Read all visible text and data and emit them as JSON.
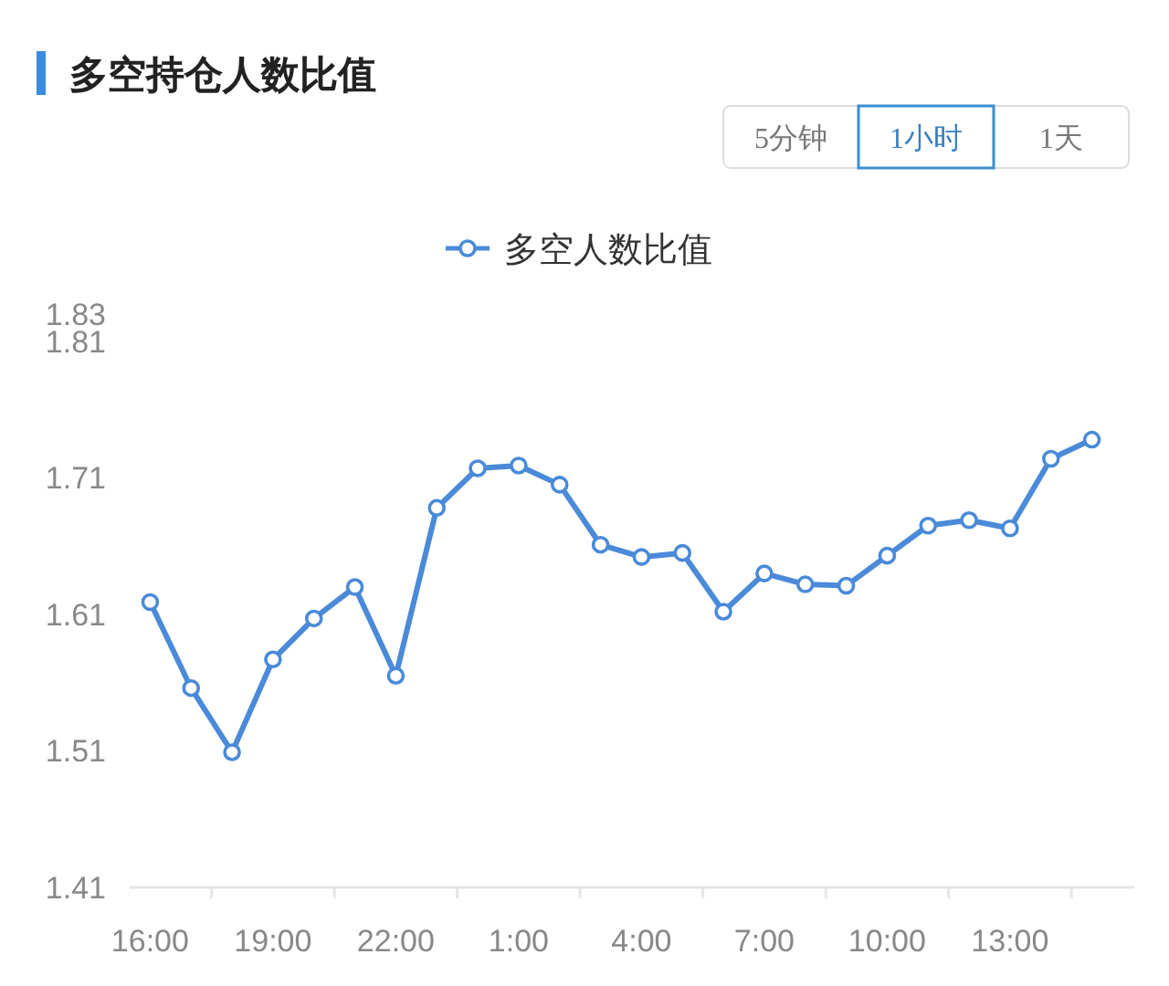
{
  "chart_data": {
    "type": "line",
    "title": "多空持仓人数比值",
    "annotations": [
      "5分钟",
      "1小时",
      "1天"
    ],
    "categories": [
      "16:00",
      null,
      null,
      "19:00",
      null,
      null,
      "22:00",
      null,
      null,
      "1:00",
      null,
      null,
      "4:00",
      null,
      null,
      "7:00",
      null,
      null,
      "10:00",
      null,
      null,
      "13:00",
      null,
      null
    ],
    "series": [
      {
        "name": "多空人数比值",
        "color": "#4a8ad8",
        "values": [
          1.619,
          1.556,
          1.509,
          1.577,
          1.607,
          1.63,
          1.565,
          1.688,
          1.717,
          1.719,
          1.705,
          1.661,
          1.652,
          1.655,
          1.612,
          1.64,
          1.632,
          1.631,
          1.653,
          1.675,
          1.679,
          1.673,
          1.724,
          1.738
        ]
      }
    ],
    "ylim": [
      1.41,
      1.83
    ],
    "yticks": [
      1.41,
      1.51,
      1.61,
      1.71,
      1.81,
      1.83
    ],
    "legend": "top",
    "marker": "circle",
    "line_style": "solid",
    "grid": false
  }
}
